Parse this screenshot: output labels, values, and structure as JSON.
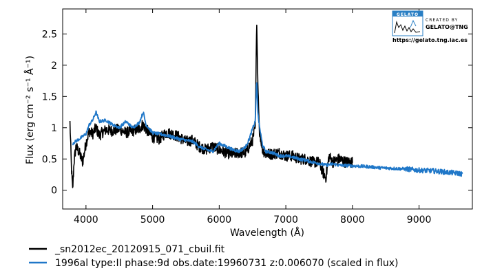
{
  "chart_data": {
    "type": "line",
    "xlabel": "Wavelength (Å)",
    "ylabel": "Flux (erg cm⁻² s⁻¹ Å⁻¹)",
    "xlim": [
      3650,
      9800
    ],
    "ylim": [
      -0.3,
      2.9
    ],
    "xticks": [
      4000,
      5000,
      6000,
      7000,
      8000,
      9000
    ],
    "xtick_labels": [
      "4000",
      "5000",
      "6000",
      "7000",
      "8000",
      "9000"
    ],
    "yticks": [
      0,
      0.5,
      1,
      1.5,
      2,
      2.5
    ],
    "ytick_labels": [
      "0",
      "0.5",
      "1",
      "1.5",
      "2",
      "2.5"
    ],
    "grid": false,
    "legend_position": "below",
    "series": [
      {
        "name": "_sn2012ec_20120915_071_cbuil.fit",
        "color": "#000000",
        "x": [
          3760,
          3780,
          3800,
          3820,
          3850,
          3900,
          3950,
          4000,
          4050,
          4100,
          4150,
          4200,
          4300,
          4400,
          4500,
          4600,
          4700,
          4800,
          4850,
          4900,
          5000,
          5100,
          5200,
          5300,
          5400,
          5500,
          5600,
          5700,
          5800,
          5900,
          6000,
          6100,
          6200,
          6300,
          6400,
          6450,
          6500,
          6540,
          6563,
          6580,
          6600,
          6650,
          6700,
          6800,
          6900,
          7000,
          7100,
          7200,
          7300,
          7400,
          7500,
          7550,
          7600,
          7650,
          7700,
          7800,
          7900,
          8000
        ],
        "y": [
          1.08,
          0.4,
          0.0,
          0.45,
          0.7,
          0.6,
          0.45,
          0.75,
          0.95,
          0.9,
          1.0,
          0.88,
          0.97,
          0.95,
          0.98,
          0.92,
          0.95,
          0.98,
          1.05,
          0.98,
          0.85,
          0.82,
          0.92,
          0.9,
          0.85,
          0.78,
          0.8,
          0.7,
          0.65,
          0.7,
          0.65,
          0.6,
          0.58,
          0.6,
          0.6,
          0.7,
          0.8,
          1.0,
          2.7,
          1.7,
          1.0,
          0.65,
          0.58,
          0.58,
          0.6,
          0.55,
          0.55,
          0.5,
          0.5,
          0.45,
          0.45,
          0.3,
          0.2,
          0.55,
          0.45,
          0.5,
          0.45,
          0.45
        ]
      },
      {
        "name": "1996al  type:II  phase:9d  obs.date:19960731  z:0.006070  (scaled in flux)",
        "color": "#1f77c8",
        "x": [
          3800,
          3900,
          4000,
          4050,
          4100,
          4150,
          4200,
          4300,
          4400,
          4500,
          4600,
          4700,
          4800,
          4860,
          4900,
          5000,
          5100,
          5200,
          5300,
          5400,
          5500,
          5600,
          5700,
          5800,
          5900,
          6000,
          6100,
          6200,
          6300,
          6400,
          6450,
          6500,
          6540,
          6563,
          6580,
          6600,
          6650,
          6700,
          6800,
          6900,
          7000,
          7100,
          7200,
          7300,
          7400,
          7500,
          7600,
          7700,
          7800,
          8000,
          8200,
          8400,
          8600,
          8800,
          9000,
          9200,
          9400,
          9600,
          9650
        ],
        "y": [
          0.75,
          0.82,
          0.9,
          1.05,
          1.12,
          1.25,
          1.1,
          1.12,
          1.05,
          1.0,
          1.1,
          1.0,
          1.08,
          1.25,
          1.05,
          0.92,
          0.9,
          0.88,
          0.85,
          0.82,
          0.8,
          0.78,
          0.7,
          0.65,
          0.62,
          0.75,
          0.7,
          0.65,
          0.62,
          0.7,
          0.82,
          0.98,
          1.1,
          1.78,
          1.25,
          1.05,
          0.72,
          0.62,
          0.6,
          0.55,
          0.55,
          0.53,
          0.5,
          0.48,
          0.45,
          0.43,
          0.4,
          0.42,
          0.4,
          0.39,
          0.38,
          0.36,
          0.35,
          0.34,
          0.32,
          0.31,
          0.29,
          0.27,
          0.26
        ]
      }
    ]
  },
  "logo": {
    "name": "GELATO",
    "created_by": "CREATED BY",
    "credit": "GELATO@TNG",
    "url": "https://gelato.tng.iac.es"
  }
}
